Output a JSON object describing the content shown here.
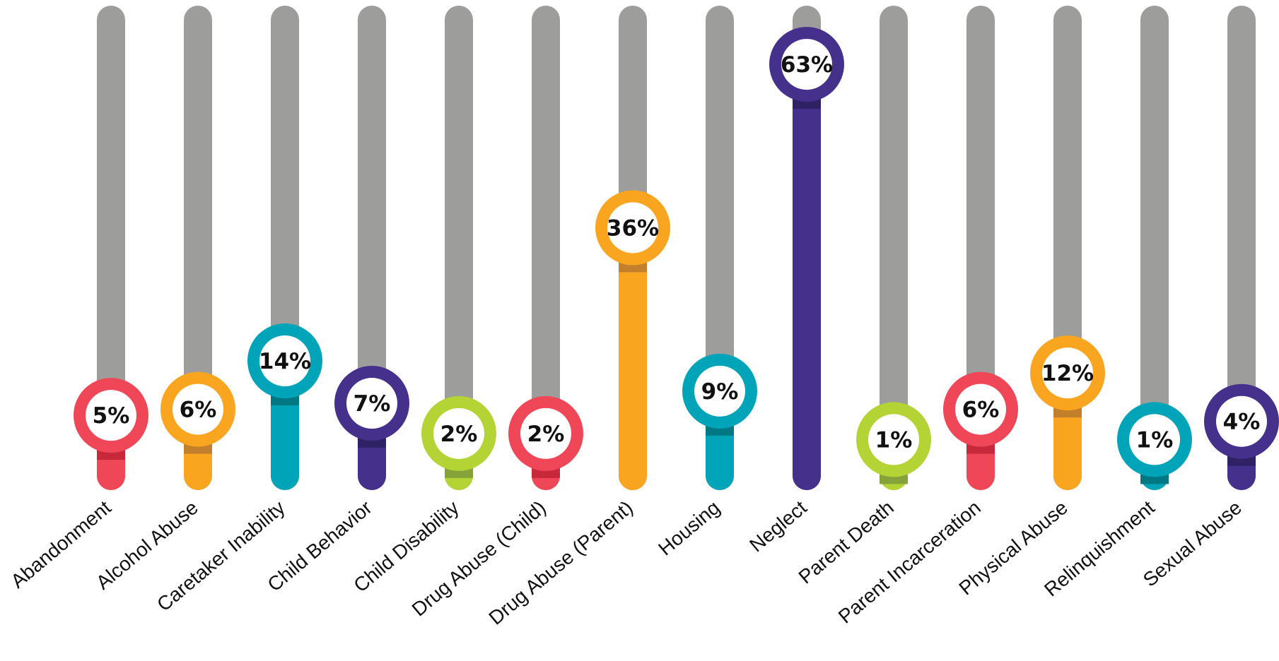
{
  "chart_data": {
    "type": "bar",
    "title": "",
    "xlabel": "",
    "ylabel": "",
    "ylim": [
      0,
      100
    ],
    "track_color": "#9d9d9c",
    "categories": [
      "Abandonment",
      "Alcohol Abuse",
      "Caretaker Inability",
      "Child Behavior",
      "Child Disability",
      "Drug Abuse (Child)",
      "Drug Abuse (Parent)",
      "Housing",
      "Neglect",
      "Parent Death",
      "Parent Incarceration",
      "Physical Abuse",
      "Relinquishment",
      "Sexual Abuse"
    ],
    "values": [
      5,
      6,
      14,
      7,
      2,
      2,
      36,
      9,
      63,
      1,
      6,
      12,
      1,
      4
    ],
    "labels": [
      "5%",
      "6%",
      "14%",
      "7%",
      "2%",
      "2%",
      "36%",
      "9%",
      "63%",
      "1%",
      "6%",
      "12%",
      "1%",
      "4%"
    ],
    "colors": [
      "#ef4757",
      "#f9a51f",
      "#00a4b8",
      "#45308c",
      "#b4d335",
      "#ef4757",
      "#f9a51f",
      "#00a4b8",
      "#45308c",
      "#b4d335",
      "#ef4757",
      "#f9a51f",
      "#00a4b8",
      "#45308c"
    ],
    "shade_colors": [
      "#c8293a",
      "#c27f2c",
      "#007884",
      "#2f2264",
      "#86a23a",
      "#c8293a",
      "#c27f2c",
      "#007884",
      "#2f2264",
      "#86a23a",
      "#c8293a",
      "#c27f2c",
      "#007884",
      "#2f2264"
    ]
  }
}
